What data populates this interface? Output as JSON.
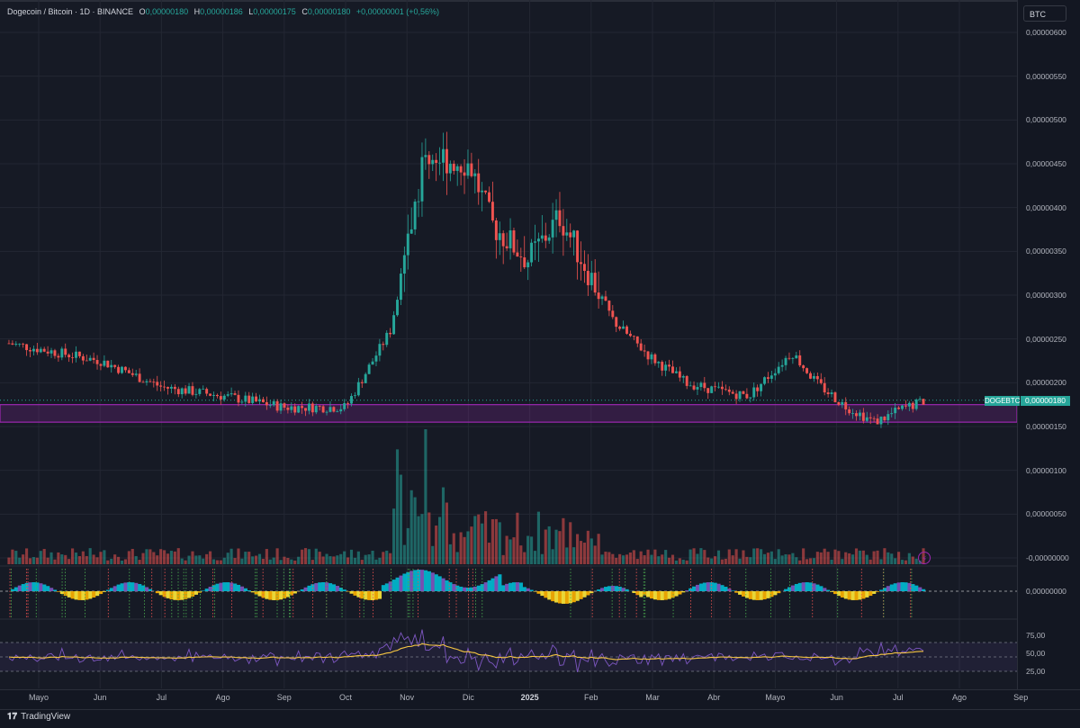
{
  "legend": {
    "symbol": "Dogecoin / Bitcoin · 1D · BINANCE",
    "o_label": "O",
    "o": "0,00000180",
    "h_label": "H",
    "h": "0,00000186",
    "l_label": "L",
    "l": "0,00000175",
    "c_label": "C",
    "c": "0,00000180",
    "change": "+0,00000001 (+0,56%)"
  },
  "currency_badge": "BTC",
  "symbol_tag": "DOGEBTC",
  "last_price_tag": "0,00000180",
  "brand": "TradingView",
  "colors": {
    "up": "#26a69a",
    "down": "#ef5350",
    "zone": "#9c27b0",
    "rsi": "#7e57c2",
    "rsi_ma": "#f5c542",
    "bg": "#161a25"
  },
  "icons": {
    "alert": "lightning-icon",
    "logo": "tradingview-logo-icon"
  },
  "chart_data": [
    {
      "type": "candlestick",
      "title": "Dogecoin / Bitcoin · 1D · BINANCE",
      "price_axis_labels": [
        "0,00000600",
        "0,00000550",
        "0,00000500",
        "0,00000450",
        "0,00000400",
        "0,00000350",
        "0,00000300",
        "0,00000250",
        "0,00000200",
        "0,00000150",
        "0,00000100",
        "0,00000050",
        "-0,00000000"
      ],
      "ylim": [
        0,
        6.05e-06
      ],
      "x_labels": [
        "Mayo",
        "Jun",
        "Jul",
        "Ago",
        "Sep",
        "Oct",
        "Nov",
        "Dic",
        "2025",
        "Feb",
        "Mar",
        "Abr",
        "Mayo",
        "Jun",
        "Jul",
        "Ago",
        "Sep"
      ],
      "series": [
        {
          "name": "DOGEBTC",
          "close_path": [
            [
              "Mayo",
              2.45
            ],
            [
              "Jun",
              2.25
            ],
            [
              "Jul",
              1.95
            ],
            [
              "Ago",
              1.85
            ],
            [
              "Sep",
              1.72
            ],
            [
              "Oct",
              1.72
            ],
            [
              "Nov",
              2.6
            ],
            [
              "Nov",
              4.6
            ],
            [
              "Dic",
              4.5
            ],
            [
              "Dic",
              3.8
            ],
            [
              "2025",
              3.4
            ],
            [
              "2025",
              3.9
            ],
            [
              "Feb",
              3.3
            ],
            [
              "Feb",
              2.7
            ],
            [
              "Mar",
              2.3
            ],
            [
              "Mar",
              2.0
            ],
            [
              "Abr",
              1.9
            ],
            [
              "Abr",
              1.85
            ],
            [
              "Mayo",
              2.35
            ],
            [
              "Mayo",
              2.0
            ],
            [
              "Jun",
              1.75
            ],
            [
              "Jun",
              1.55
            ],
            [
              "Jul",
              1.7
            ],
            [
              "Jul",
              1.8
            ]
          ]
        }
      ],
      "zone": {
        "from": 1.55,
        "to": 1.75,
        "unit": "1e-6 BTC"
      },
      "last": 1.8
    },
    {
      "type": "bar",
      "name": "Volume",
      "note": "volume histogram"
    },
    {
      "type": "area",
      "name": "Oscillator",
      "axis_labels": [
        "0,00000000"
      ]
    },
    {
      "type": "line",
      "name": "RSI",
      "axis_labels": [
        "75,00",
        "50,00",
        "25,00"
      ],
      "ylim": [
        0,
        100
      ],
      "levels": [
        70,
        50,
        30
      ]
    }
  ]
}
